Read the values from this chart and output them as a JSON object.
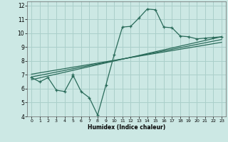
{
  "title": "",
  "xlabel": "Humidex (Indice chaleur)",
  "bg_color": "#cce8e4",
  "grid_color": "#aacfca",
  "line_color": "#2a6b5a",
  "xlim": [
    -0.5,
    23.5
  ],
  "ylim": [
    4,
    12.3
  ],
  "xticks": [
    0,
    1,
    2,
    3,
    4,
    5,
    6,
    7,
    8,
    9,
    10,
    11,
    12,
    13,
    14,
    15,
    16,
    17,
    18,
    19,
    20,
    21,
    22,
    23
  ],
  "yticks": [
    4,
    5,
    6,
    7,
    8,
    9,
    10,
    11,
    12
  ],
  "data_line": {
    "x": [
      0,
      1,
      2,
      3,
      4,
      5,
      5,
      6,
      7,
      8,
      9,
      10,
      11,
      12,
      13,
      14,
      15,
      16,
      17,
      18,
      19,
      20,
      21,
      22,
      23
    ],
    "y": [
      6.8,
      6.5,
      6.8,
      5.9,
      5.8,
      6.9,
      7.0,
      5.8,
      5.35,
      4.1,
      6.25,
      8.45,
      10.45,
      10.5,
      11.1,
      11.75,
      11.7,
      10.45,
      10.4,
      9.8,
      9.75,
      9.6,
      9.65,
      9.7,
      9.75
    ]
  },
  "reg_line1": {
    "x": [
      0,
      23
    ],
    "y": [
      6.65,
      9.75
    ]
  },
  "reg_line2": {
    "x": [
      0,
      23
    ],
    "y": [
      6.85,
      9.55
    ]
  },
  "reg_line3": {
    "x": [
      0,
      23
    ],
    "y": [
      7.05,
      9.35
    ]
  }
}
